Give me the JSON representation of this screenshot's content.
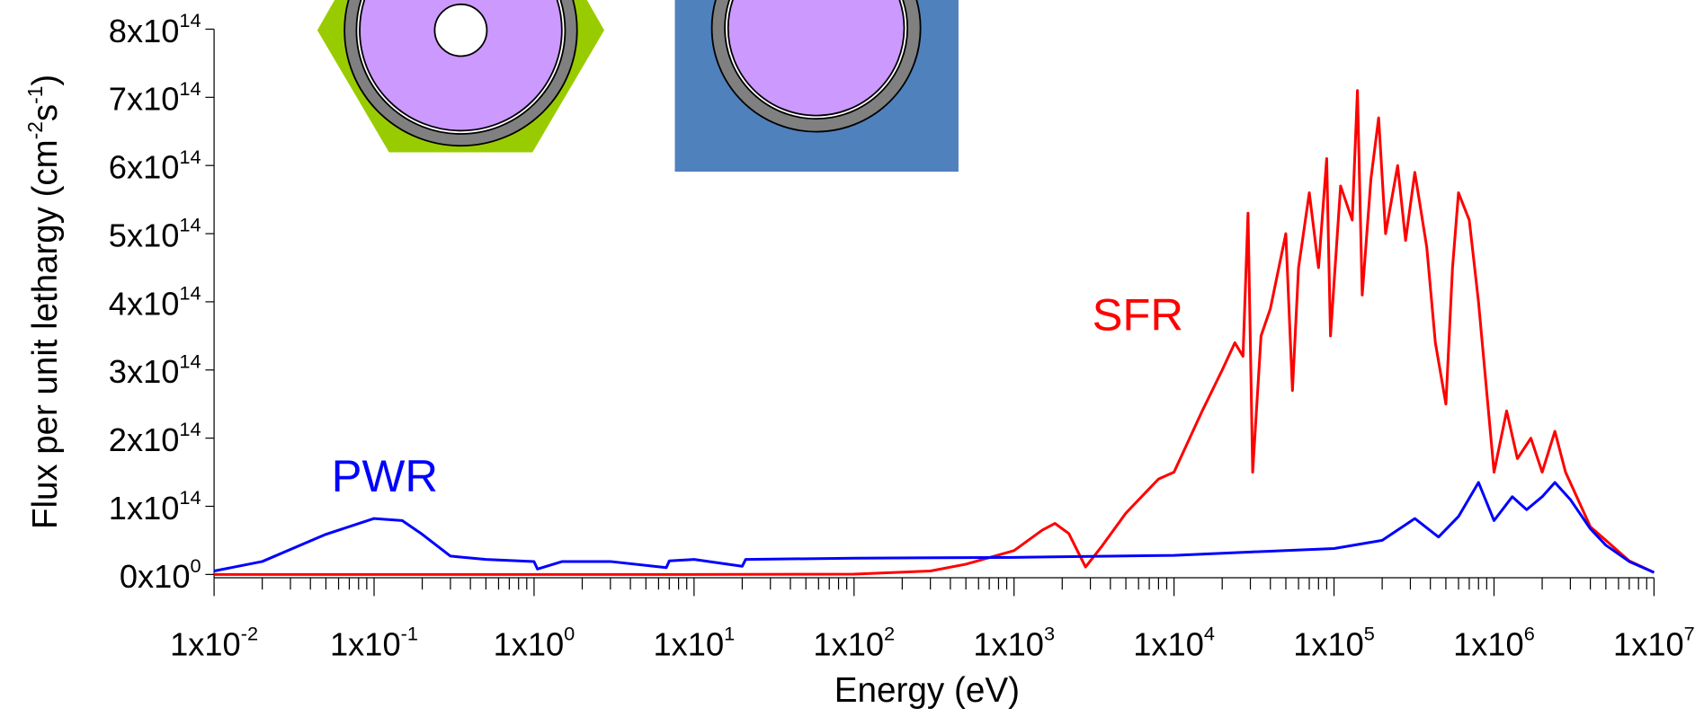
{
  "chart_data": {
    "type": "line",
    "xlabel": "Energy (eV)",
    "ylabel_parts": [
      {
        "text": "Flux per unit lethargy (cm"
      },
      {
        "text": "-2",
        "sup": true
      },
      {
        "text": "s"
      },
      {
        "text": "-1",
        "sup": true
      },
      {
        "text": ")"
      }
    ],
    "xscale": "log",
    "minor_ticks": true,
    "xlim": [
      0.01,
      10000000
    ],
    "ylim": [
      0,
      800000000000000
    ],
    "xticks": [
      {
        "value": 0.01,
        "label": {
          "base": "1x10",
          "exponent": "-2"
        }
      },
      {
        "value": 0.1,
        "label": {
          "base": "1x10",
          "exponent": "-1"
        }
      },
      {
        "value": 1,
        "label": {
          "base": "1x10",
          "exponent": "0"
        }
      },
      {
        "value": 10,
        "label": {
          "base": "1x10",
          "exponent": "1"
        }
      },
      {
        "value": 100,
        "label": {
          "base": "1x10",
          "exponent": "2"
        }
      },
      {
        "value": 1000,
        "label": {
          "base": "1x10",
          "exponent": "3"
        }
      },
      {
        "value": 10000,
        "label": {
          "base": "1x10",
          "exponent": "4"
        }
      },
      {
        "value": 100000,
        "label": {
          "base": "1x10",
          "exponent": "5"
        }
      },
      {
        "value": 1000000,
        "label": {
          "base": "1x10",
          "exponent": "6"
        }
      },
      {
        "value": 10000000,
        "label": {
          "base": "1x10",
          "exponent": "7"
        }
      }
    ],
    "yticks": [
      {
        "value": 0,
        "label": {
          "base": "0x10",
          "exponent": "0"
        }
      },
      {
        "value": 100000000000000.0,
        "label": {
          "base": "1x10",
          "exponent": "14"
        }
      },
      {
        "value": 200000000000000.0,
        "label": {
          "base": "2x10",
          "exponent": "14"
        }
      },
      {
        "value": 300000000000000.0,
        "label": {
          "base": "3x10",
          "exponent": "14"
        }
      },
      {
        "value": 400000000000000.0,
        "label": {
          "base": "4x10",
          "exponent": "14"
        }
      },
      {
        "value": 500000000000000.0,
        "label": {
          "base": "5x10",
          "exponent": "14"
        }
      },
      {
        "value": 600000000000000.0,
        "label": {
          "base": "6x10",
          "exponent": "14"
        }
      },
      {
        "value": 700000000000000.0,
        "label": {
          "base": "7x10",
          "exponent": "14"
        }
      },
      {
        "value": 800000000000000.0,
        "label": {
          "base": "8x10",
          "exponent": "14"
        }
      }
    ],
    "series": [
      {
        "name": "SFR",
        "color": "#ff0000",
        "x": [
          0.01,
          10,
          100,
          300,
          500,
          1000,
          1500,
          1800,
          2200,
          2800,
          3500,
          5000,
          8000,
          10000,
          15000,
          20000,
          24000,
          27000,
          29000,
          31000,
          35000,
          40000,
          50000,
          55000,
          60000,
          70000,
          80000,
          90000,
          95000,
          110000,
          130000,
          140000,
          150000,
          170000,
          190000,
          210000,
          250000,
          280000,
          320000,
          380000,
          430000,
          500000,
          550000,
          600000,
          700000,
          800000,
          1000000,
          1200000,
          1400000,
          1700000,
          2000000,
          2400000,
          2800000,
          3500000,
          4000000,
          5000000,
          7000000,
          10000000
        ],
        "values": [
          0,
          0,
          500000000000.0,
          5000000000000.0,
          15000000000000.0,
          35000000000000.0,
          65000000000000.0,
          75000000000000.0,
          60000000000000.0,
          11000000000000.0,
          40000000000000.0,
          90000000000000.0,
          140000000000000.0,
          150000000000000.0,
          240000000000000.0,
          300000000000000.0,
          340000000000000.0,
          320000000000000.0,
          530000000000000.0,
          150000000000000.0,
          350000000000000.0,
          390000000000000.0,
          500000000000000.0,
          270000000000000.0,
          450000000000000.0,
          560000000000000.0,
          450000000000000.0,
          610000000000000.0,
          350000000000000.0,
          570000000000000.0,
          520000000000000.0,
          710000000000000.0,
          410000000000000.0,
          580000000000000.0,
          670000000000000.0,
          500000000000000.0,
          600000000000000.0,
          490000000000000.0,
          590000000000000.0,
          480000000000000.0,
          340000000000000.0,
          250000000000000.0,
          450000000000000.0,
          560000000000000.0,
          520000000000000.0,
          400000000000000.0,
          150000000000000.0,
          240000000000000.0,
          170000000000000.0,
          200000000000000.0,
          150000000000000.0,
          210000000000000.0,
          150000000000000.0,
          100000000000000.0,
          70000000000000.0,
          50000000000000.0,
          20000000000000.0,
          3000000000000.0
        ]
      },
      {
        "name": "PWR",
        "color": "#0000ff",
        "x": [
          0.01,
          0.02,
          0.05,
          0.1,
          0.15,
          0.2,
          0.3,
          0.5,
          1,
          1.05,
          1.5,
          3,
          6.7,
          7,
          10,
          20,
          21,
          100,
          1000,
          10000,
          30000,
          100000,
          200000,
          320000,
          450000,
          600000,
          800000,
          1000000,
          1300000,
          1600000,
          2000000,
          2400000,
          3000000,
          4000000,
          5000000,
          7000000,
          10000000
        ],
        "values": [
          5000000000000.0,
          19000000000000.0,
          59000000000000.0,
          82000000000000.0,
          79000000000000.0,
          59000000000000.0,
          27000000000000.0,
          22000000000000.0,
          19000000000000.0,
          8000000000000.0,
          19000000000000.0,
          19000000000000.0,
          10000000000000.0,
          20000000000000.0,
          22000000000000.0,
          12000000000000.0,
          22000000000000.0,
          24000000000000.0,
          25000000000000.0,
          28000000000000.0,
          33000000000000.0,
          38000000000000.0,
          50000000000000.0,
          82000000000000.0,
          55000000000000.0,
          85000000000000.0,
          135000000000000.0,
          79000000000000.0,
          114000000000000.0,
          95000000000000.0,
          114000000000000.0,
          135000000000000.0,
          110000000000000.0,
          67000000000000.0,
          43000000000000.0,
          19000000000000.0,
          3000000000000.0
        ]
      }
    ]
  }
}
